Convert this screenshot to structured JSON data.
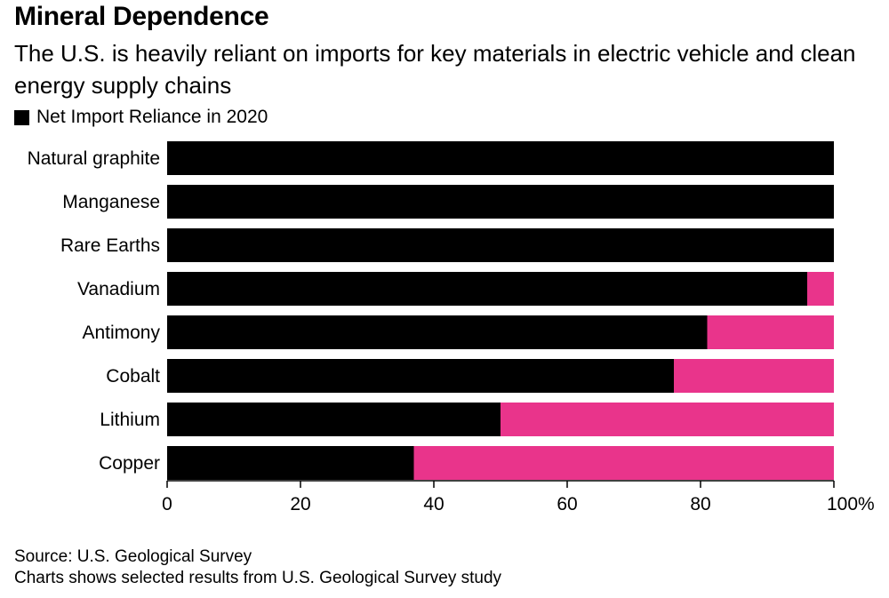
{
  "title": "Mineral Dependence",
  "subtitle": "The U.S. is heavily reliant on imports for key materials in electric vehicle and clean energy supply chains",
  "legend": {
    "label": "Net Import Reliance in 2020"
  },
  "source": "Source: U.S. Geological Survey",
  "note": "Charts shows selected results from U.S. Geological Survey study",
  "colors": {
    "import": "#000000",
    "remainder": "#e9348b"
  },
  "chart_data": {
    "type": "bar",
    "orientation": "horizontal",
    "stacked": true,
    "categories": [
      "Natural graphite",
      "Manganese",
      "Rare Earths",
      "Vanadium",
      "Antimony",
      "Cobalt",
      "Lithium",
      "Copper"
    ],
    "series": [
      {
        "name": "Net Import Reliance in 2020",
        "values": [
          100,
          100,
          100,
          96,
          81,
          76,
          50,
          37
        ]
      }
    ],
    "xlim": [
      0,
      100
    ],
    "xticks": [
      "0",
      "20",
      "40",
      "60",
      "80",
      "100%"
    ],
    "xlabel": "",
    "ylabel": "",
    "grid": false,
    "legend_position": "top-left"
  }
}
